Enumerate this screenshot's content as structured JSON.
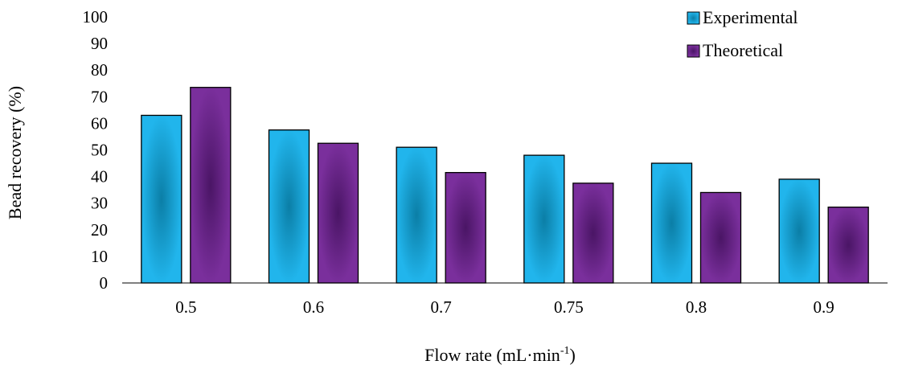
{
  "chart_data": {
    "type": "bar",
    "categories": [
      "0.5",
      "0.6",
      "0.7",
      "0.75",
      "0.8",
      "0.9"
    ],
    "series": [
      {
        "name": "Experimental",
        "values": [
          63,
          57.5,
          51,
          48,
          45,
          39
        ],
        "color_center": "#0b7ea6",
        "color_edge": "#21b5ec"
      },
      {
        "name": "Theoretical",
        "values": [
          73.5,
          52.5,
          41.5,
          37.5,
          34,
          28.5
        ],
        "color_center": "#4a1565",
        "color_edge": "#7a2f9c"
      }
    ],
    "ylim": [
      0,
      100
    ],
    "yticks": [
      0,
      10,
      20,
      30,
      40,
      50,
      60,
      70,
      80,
      90,
      100
    ],
    "xlabel": {
      "prefix": "Flow rate (mL·min",
      "superscript": "-1",
      "suffix": ")"
    },
    "ylabel": "Bead recovery (%)",
    "grid": false,
    "legend_position": "top-right"
  }
}
